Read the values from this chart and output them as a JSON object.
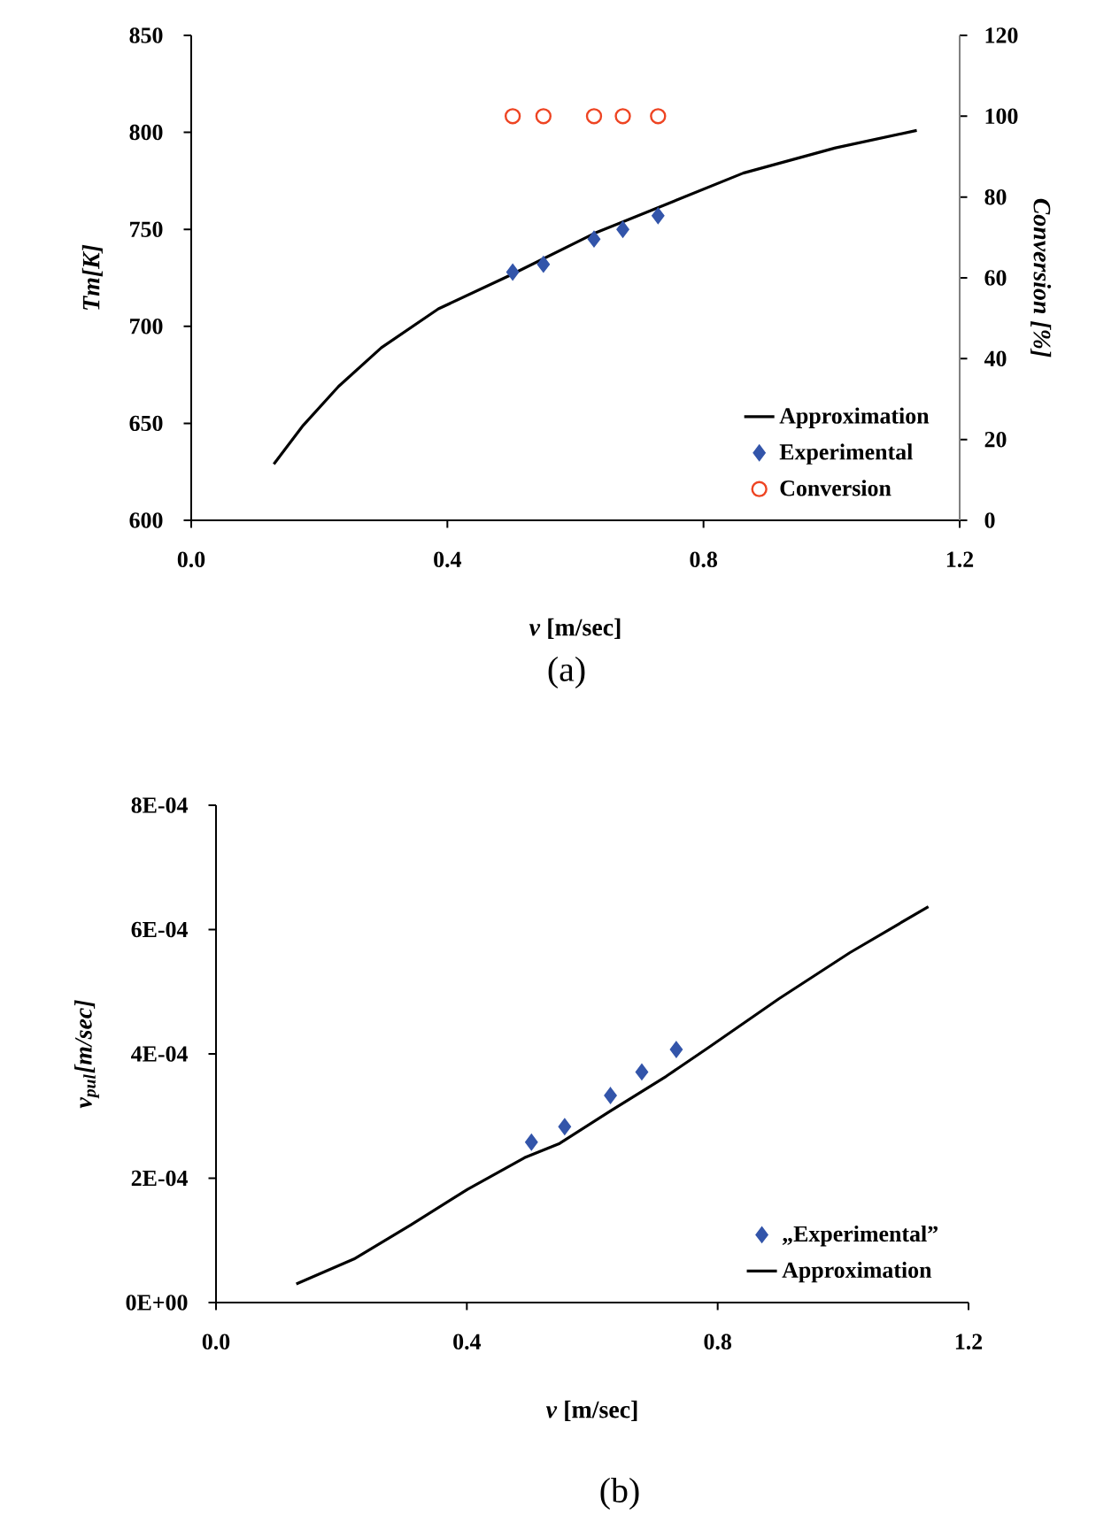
{
  "chart_data": [
    {
      "type": "line",
      "xlabel": "*v* [m/sec]",
      "ylabel": "Tm[K]",
      "y2label": "Conversion [%]",
      "xlim": [
        0,
        1.2
      ],
      "xticks": [
        {
          "value": 0,
          "label": "0.0"
        },
        0.4,
        0.8,
        1.2
      ],
      "ylim": [
        600,
        850
      ],
      "yticks": [
        600,
        650,
        700,
        750,
        800,
        850
      ],
      "y2lim": [
        0,
        120
      ],
      "y2ticks": [
        0,
        20,
        40,
        60,
        80,
        100,
        120
      ],
      "legend": "bottom right",
      "grid": false,
      "annotations": [
        "(a)"
      ],
      "series": [
        {
          "name": "Approximation",
          "color": "#000000",
          "line_style": "solid",
          "x": [
            0.129,
            0.175,
            0.23,
            0.297,
            0.386,
            0.496,
            0.63,
            0.75,
            0.862,
            1.006,
            1.133
          ],
          "values": [
            629,
            649,
            669,
            689,
            709,
            726,
            748,
            764,
            779,
            792,
            801
          ]
        },
        {
          "name": "Experimental",
          "type": "scatter",
          "marker": "diamond",
          "color": "#3355aa",
          "x": [
            0.502,
            0.55,
            0.629,
            0.674,
            0.729
          ],
          "values": [
            728,
            732,
            745,
            750,
            757
          ]
        },
        {
          "name": "Conversion",
          "type": "scatter",
          "marker": "circle",
          "axis": "y2",
          "color": "#ee4422",
          "x": [
            0.502,
            0.55,
            0.629,
            0.674,
            0.729
          ],
          "values": [
            100,
            100,
            100,
            100,
            100
          ]
        }
      ]
    },
    {
      "type": "line",
      "xlabel": "*v* [m/sec]",
      "ylabel": "*v*$_{pul}$[m/sec]",
      "xlim": [
        0,
        1.2
      ],
      "xticks": [
        {
          "value": 0,
          "label": "0.0"
        },
        0.4,
        0.8,
        1.2
      ],
      "ylim": [
        0,
        0.0008
      ],
      "yticks": [
        {
          "value": 0,
          "label": "0E+00"
        },
        {
          "value": 0.0002,
          "label": "2E-04"
        },
        {
          "value": 0.0004,
          "label": "4E-04"
        },
        {
          "value": 0.0006,
          "label": "6E-04"
        },
        {
          "value": 0.0008,
          "label": "8E-04"
        }
      ],
      "legend": "bottom right",
      "grid": false,
      "annotations": [
        "(b)"
      ],
      "series": [
        {
          "name": "„Experimental”",
          "type": "scatter",
          "marker": "diamond",
          "color": "#3355aa",
          "x": [
            0.503,
            0.556,
            0.629,
            0.679,
            0.734
          ],
          "values": [
            0.000258,
            0.000283,
            0.000333,
            0.000371,
            0.000407
          ]
        },
        {
          "name": "Approximation",
          "color": "#000000",
          "line_style": "solid",
          "x": [
            0.128,
            0.22,
            0.311,
            0.401,
            0.492,
            0.548,
            0.627,
            0.718,
            0.785,
            0.898,
            1.011,
            1.136
          ],
          "values": [
            3e-05,
            7e-05,
            0.000125,
            0.000182,
            0.000233,
            0.000256,
            0.000307,
            0.000364,
            0.00041,
            0.000489,
            0.000563,
            0.000637
          ]
        }
      ]
    }
  ]
}
